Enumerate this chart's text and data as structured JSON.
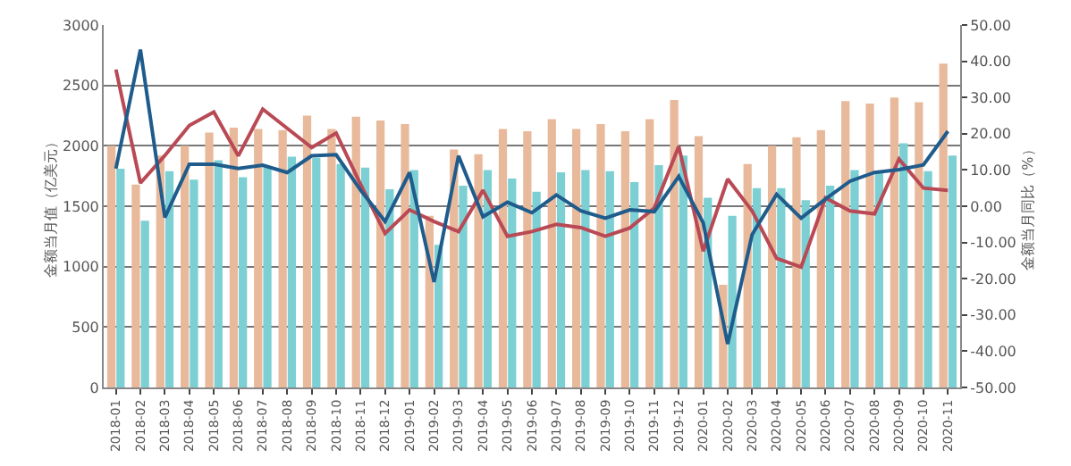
{
  "chart_data": {
    "type": "bar",
    "ylabel": "金额当月值（亿美元）",
    "y2label": "金额当月同比（%）",
    "categories": [
      "2018-01",
      "2018-02",
      "2018-03",
      "2018-04",
      "2018-05",
      "2018-06",
      "2018-07",
      "2018-08",
      "2018-09",
      "2018-10",
      "2018-11",
      "2018-12",
      "2019-01",
      "2019-02",
      "2019-03",
      "2019-04",
      "2019-05",
      "2019-06",
      "2019-07",
      "2019-08",
      "2019-09",
      "2019-10",
      "2019-11",
      "2019-12",
      "2020-01",
      "2020-02",
      "2020-03",
      "2020-04",
      "2020-05",
      "2020-06",
      "2020-07",
      "2020-08",
      "2020-09",
      "2020-10",
      "2020-11"
    ],
    "series": [
      {
        "color": "#e8b99a",
        "values": [
          2000,
          1680,
          1920,
          2000,
          2110,
          2150,
          2140,
          2130,
          2250,
          2140,
          2240,
          2210,
          2180,
          1420,
          1970,
          1930,
          2140,
          2120,
          2220,
          2140,
          2180,
          2120,
          2220,
          2380,
          2080,
          850,
          1850,
          2000,
          2070,
          2130,
          2370,
          2350,
          2400,
          2360,
          2680
        ]
      },
      {
        "color": "#7ccfd3",
        "values": [
          1810,
          1380,
          1790,
          1720,
          1880,
          1740,
          1830,
          1910,
          1900,
          1850,
          1820,
          1640,
          1800,
          1180,
          1670,
          1800,
          1730,
          1620,
          1780,
          1800,
          1790,
          1700,
          1840,
          1920,
          1570,
          1420,
          1650,
          1650,
          1550,
          1670,
          1800,
          1780,
          2020,
          1790,
          1920
        ]
      },
      {
        "type": "line",
        "axis": "y2",
        "color": "#b94a55",
        "values": [
          37.7,
          6.4,
          14,
          22.3,
          26,
          13.9,
          26.8,
          21.5,
          16.2,
          20.2,
          6,
          -7.5,
          -1,
          -4.2,
          -7,
          4.4,
          -8.3,
          -7,
          -5,
          -5.9,
          -8.3,
          -6,
          -0.5,
          16.5,
          -12.4,
          7.5,
          -1.3,
          -14.4,
          -16.8,
          2.3,
          -1.3,
          -2.1,
          13,
          5,
          4.4
        ]
      },
      {
        "type": "line",
        "axis": "y2",
        "color": "#1f5c8c",
        "values": [
          10.4,
          43.2,
          -3.1,
          11.6,
          11.6,
          10.4,
          11.3,
          9.3,
          13.9,
          14.2,
          4.4,
          -4.2,
          9.3,
          -20.9,
          13.9,
          -2.9,
          1.1,
          -1.8,
          3.1,
          -1.3,
          -3.3,
          -1,
          -1.5,
          8.2,
          -4.6,
          -38,
          -7.8,
          3.3,
          -3.3,
          2,
          6.9,
          9.3,
          10.1,
          11.4,
          20.7
        ]
      }
    ],
    "ylim": [
      0,
      3000
    ],
    "yticks": [
      0,
      500,
      1000,
      1500,
      2000,
      2500,
      3000
    ],
    "y2lim": [
      -50,
      50
    ],
    "y2ticks": [
      {
        "value": -50,
        "label": "-50.00"
      },
      {
        "value": -40,
        "label": "-40.00"
      },
      {
        "value": -30,
        "label": "-30.00"
      },
      {
        "value": -20,
        "label": "-20.00"
      },
      {
        "value": -10,
        "label": "-10.00"
      },
      {
        "value": 0,
        "label": "0.00"
      },
      {
        "value": 10,
        "label": "10.00"
      },
      {
        "value": 20,
        "label": "20.00"
      },
      {
        "value": 30,
        "label": "30.00"
      },
      {
        "value": 40,
        "label": "40.00"
      },
      {
        "value": 50,
        "label": "50.00"
      }
    ],
    "grid": "y",
    "marker": "none",
    "line_style": "solid",
    "legend": false
  }
}
